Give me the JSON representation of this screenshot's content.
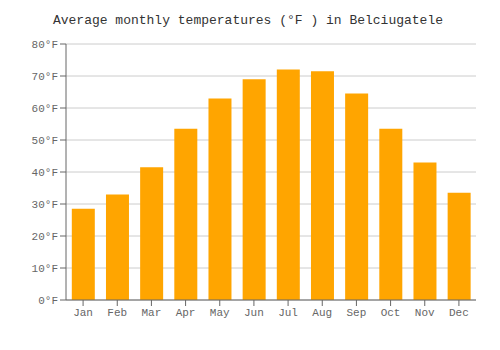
{
  "chart_data": {
    "type": "bar",
    "title": "Average monthly temperatures (°F ) in Belciugatele",
    "categories": [
      "Jan",
      "Feb",
      "Mar",
      "Apr",
      "May",
      "Jun",
      "Jul",
      "Aug",
      "Sep",
      "Oct",
      "Nov",
      "Dec"
    ],
    "values": [
      28.5,
      33.0,
      41.5,
      53.5,
      63.0,
      69.0,
      72.0,
      71.5,
      64.5,
      53.5,
      43.0,
      33.5
    ],
    "color": "#FFA500",
    "ylim": [
      0,
      80
    ],
    "yticks": [
      {
        "value": 0,
        "label": "0°F"
      },
      {
        "value": 10,
        "label": "10°F"
      },
      {
        "value": 20,
        "label": "20°F"
      },
      {
        "value": 30,
        "label": "30°F"
      },
      {
        "value": 40,
        "label": "40°F"
      },
      {
        "value": 50,
        "label": "50°F"
      },
      {
        "value": 60,
        "label": "60°F"
      },
      {
        "value": 70,
        "label": "70°F"
      },
      {
        "value": 80,
        "label": "80°F"
      }
    ],
    "grid": true
  }
}
